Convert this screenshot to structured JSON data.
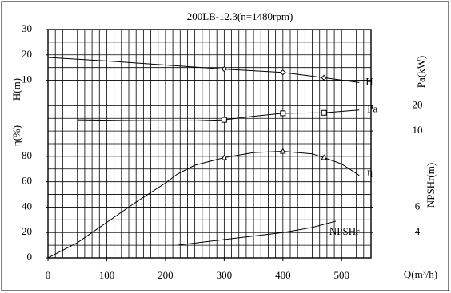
{
  "chart_data": {
    "type": "line",
    "title": "200LB-12.3(n=1480rpm)",
    "x_label": "Q(m³/h)",
    "xlim": [
      0,
      550
    ],
    "xticks": [
      0,
      100,
      200,
      300,
      400,
      500
    ],
    "grid": true,
    "y_axes": [
      {
        "label": "H(m)",
        "side": "left",
        "ylim": [
          -60,
          30
        ],
        "yticks": [
          10,
          20,
          30
        ]
      },
      {
        "label": "η(%)",
        "side": "left",
        "ylim": [
          0,
          180
        ],
        "yticks": [
          0,
          20,
          40,
          60,
          80
        ]
      },
      {
        "label": "Pa(kW)",
        "side": "right",
        "ylim": [
          -40,
          50
        ],
        "yticks": [
          10,
          20
        ]
      },
      {
        "label": "NPSHr(m)",
        "side": "right",
        "ylim": [
          2,
          20
        ],
        "yticks": [
          4,
          6
        ]
      }
    ],
    "series": [
      {
        "name": "H",
        "axis": 0,
        "color": "#000000",
        "marker": "diamond",
        "x": [
          0,
          100,
          200,
          300,
          400,
          470,
          530
        ],
        "values": [
          19,
          17.6,
          16,
          14.4,
          13.1,
          11,
          9.1
        ],
        "marked": [
          false,
          false,
          false,
          true,
          true,
          true,
          false
        ]
      },
      {
        "name": "Pa",
        "axis": 2,
        "color": "#000000",
        "marker": "square",
        "x": [
          50,
          150,
          250,
          300,
          350,
          400,
          470,
          530
        ],
        "values": [
          14.4,
          14.1,
          14.0,
          14.4,
          15.8,
          17,
          17.2,
          18.3
        ],
        "marked": [
          false,
          false,
          false,
          true,
          false,
          true,
          true,
          false
        ]
      },
      {
        "name": "η",
        "axis": 1,
        "color": "#000000",
        "marker": "triangle",
        "x": [
          0,
          25,
          50,
          100,
          150,
          200,
          220,
          250,
          300,
          350,
          400,
          450,
          470,
          500,
          530
        ],
        "values": [
          0,
          6,
          12,
          28,
          44,
          59,
          66,
          73,
          79,
          83,
          84,
          82,
          79,
          74,
          65
        ],
        "marked": [
          false,
          false,
          false,
          false,
          false,
          false,
          false,
          false,
          true,
          false,
          true,
          false,
          true,
          false,
          false
        ]
      },
      {
        "name": "NPSHr",
        "axis": 3,
        "color": "#000000",
        "marker": "none",
        "x": [
          220,
          300,
          400,
          450,
          490
        ],
        "values": [
          3.0,
          3.45,
          4.0,
          4.4,
          4.9
        ],
        "marked": [
          false,
          false,
          false,
          false,
          false
        ]
      }
    ]
  }
}
